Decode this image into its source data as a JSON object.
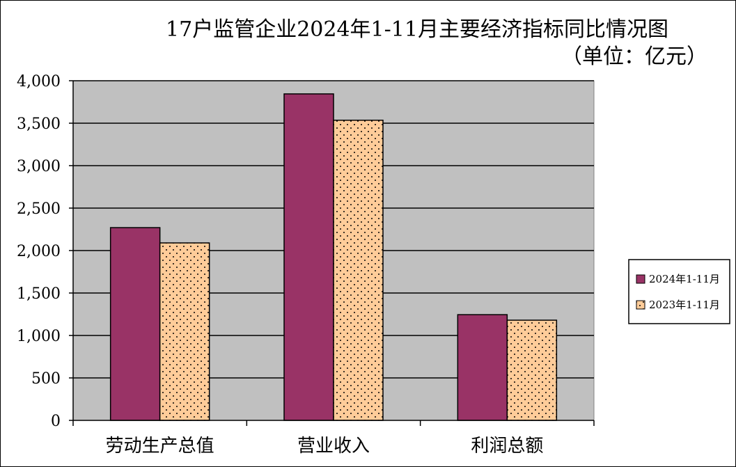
{
  "chart_data": {
    "type": "bar",
    "title": "17户监管企业2024年1-11月主要经济指标同比情况图",
    "subtitle": "（单位：亿元）",
    "categories": [
      "劳动生产总值",
      "营业收入",
      "利润总额"
    ],
    "series": [
      {
        "name": "2024年1-11月",
        "values": [
          2270,
          3845,
          1245
        ],
        "color": "#993366",
        "pattern": "solid"
      },
      {
        "name": "2023年1-11月",
        "values": [
          2090,
          3535,
          1180
        ],
        "color": "#FFCC99",
        "pattern": "dots"
      }
    ],
    "ylim": [
      0,
      4000
    ],
    "yticks": [
      0,
      500,
      1000,
      1500,
      2000,
      2500,
      3000,
      3500,
      4000
    ],
    "ytick_labels": [
      "0",
      "500",
      "1,000",
      "1,500",
      "2,000",
      "2,500",
      "3,000",
      "3,500",
      "4,000"
    ],
    "grid": true,
    "legend_position": "right",
    "plot_background": "#C0C0C0"
  }
}
